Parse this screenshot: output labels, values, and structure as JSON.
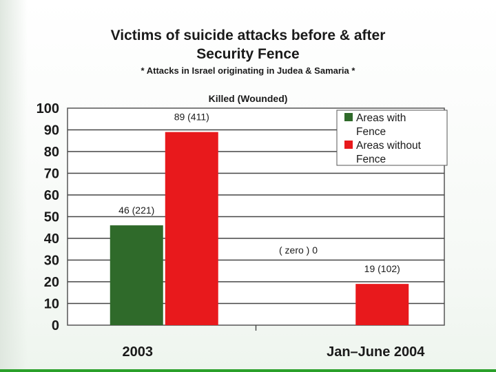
{
  "header": {
    "title_line1": "Victims of suicide attacks before & after",
    "title_line2": "Security Fence",
    "subtitle": "* Attacks in Israel originating in Judea & Samaria *",
    "unit_label": "Killed (Wounded)"
  },
  "colors": {
    "series_with_fence": "#2f6a2a",
    "series_without_fence": "#e8191c",
    "accent_green": "#2aa02a"
  },
  "chart_data": {
    "type": "bar",
    "title": "Victims of suicide attacks before & after Security Fence",
    "subtitle": "* Attacks in Israel originating in Judea & Samaria *",
    "ylabel": "Killed (Wounded)",
    "xlabel": "",
    "categories": [
      "2003",
      "Jan–June 2004"
    ],
    "series": [
      {
        "name": "Areas with Fence",
        "values": [
          46,
          0
        ],
        "labels": [
          "46 (221)",
          "( zero ) 0"
        ]
      },
      {
        "name": "Areas without Fence",
        "values": [
          89,
          19
        ],
        "labels": [
          "89 (411)",
          "19 (102)"
        ]
      }
    ],
    "ylim": [
      0,
      100
    ],
    "yticks": [
      0,
      10,
      20,
      30,
      40,
      50,
      60,
      70,
      80,
      90,
      100
    ],
    "grid": true,
    "legend_position": "top-right"
  }
}
